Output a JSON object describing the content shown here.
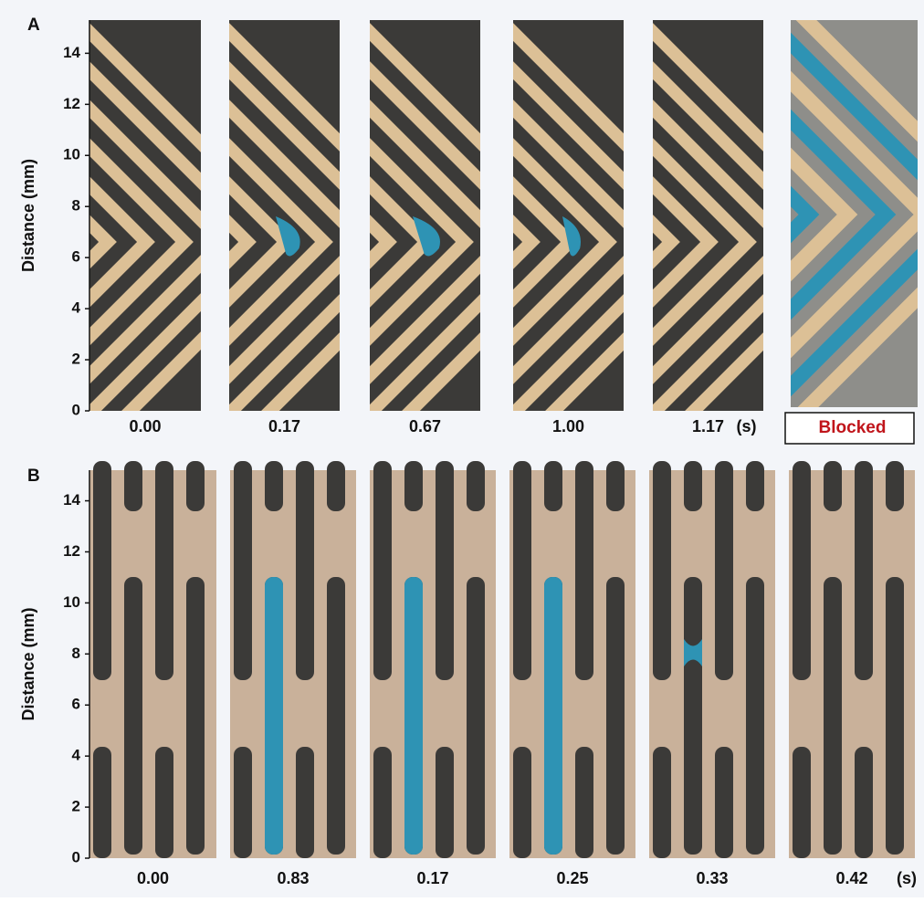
{
  "panels": [
    {
      "label": "A",
      "y_axis": {
        "label": "Distance (mm)",
        "ylim": [
          0,
          15.3
        ],
        "yticks": [
          0,
          2,
          4,
          6,
          8,
          10,
          12,
          14
        ]
      },
      "frames": [
        "0.00",
        "0.17",
        "0.67",
        "1.00",
        "1.17"
      ],
      "unit": "(s)",
      "status": "Blocked"
    },
    {
      "label": "B",
      "y_axis": {
        "label": "Distance (mm)",
        "ylim": [
          0,
          15.2
        ],
        "yticks": [
          0,
          2,
          4,
          6,
          8,
          10,
          12,
          14
        ]
      },
      "frames": [
        "0.00",
        "0.83",
        "0.17",
        "0.25",
        "0.33",
        "0.42"
      ],
      "unit": "(s)"
    }
  ]
}
